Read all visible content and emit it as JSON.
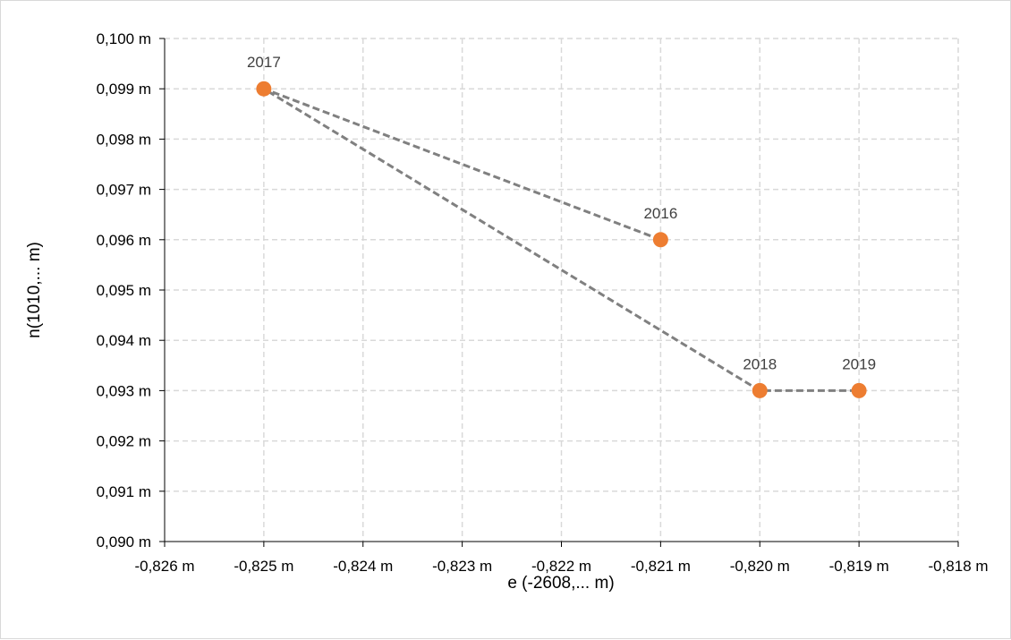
{
  "chart_data": {
    "type": "scatter",
    "xlabel": "e (-2608,... m)",
    "ylabel": "n(1010,... m)",
    "xlim": [
      -0.826,
      -0.818
    ],
    "ylim": [
      0.09,
      0.1
    ],
    "x_tick_values": [
      -0.826,
      -0.825,
      -0.824,
      -0.823,
      -0.822,
      -0.821,
      -0.82,
      -0.819,
      -0.818
    ],
    "x_tick_labels": [
      "-0,826 m",
      "-0,825 m",
      "-0,824 m",
      "-0,823 m",
      "-0,822 m",
      "-0,821 m",
      "-0,820 m",
      "-0,819 m",
      "-0,818 m"
    ],
    "y_tick_values": [
      0.09,
      0.091,
      0.092,
      0.093,
      0.094,
      0.095,
      0.096,
      0.097,
      0.098,
      0.099,
      0.1
    ],
    "y_tick_labels": [
      "0,090 m",
      "0,091 m",
      "0,092 m",
      "0,093 m",
      "0,094 m",
      "0,095 m",
      "0,096 m",
      "0,097 m",
      "0,098 m",
      "0,099 m",
      "0,100 m"
    ],
    "grid": true,
    "points": [
      {
        "label": "2016",
        "x": -0.821,
        "y": 0.096
      },
      {
        "label": "2017",
        "x": -0.825,
        "y": 0.099
      },
      {
        "label": "2018",
        "x": -0.82,
        "y": 0.093
      },
      {
        "label": "2019",
        "x": -0.819,
        "y": 0.093
      }
    ],
    "line_style": "dashed",
    "colors": {
      "marker": "#ed7d31",
      "line": "#808080",
      "grid": "#d9d9d9",
      "axis": "#000000"
    }
  }
}
